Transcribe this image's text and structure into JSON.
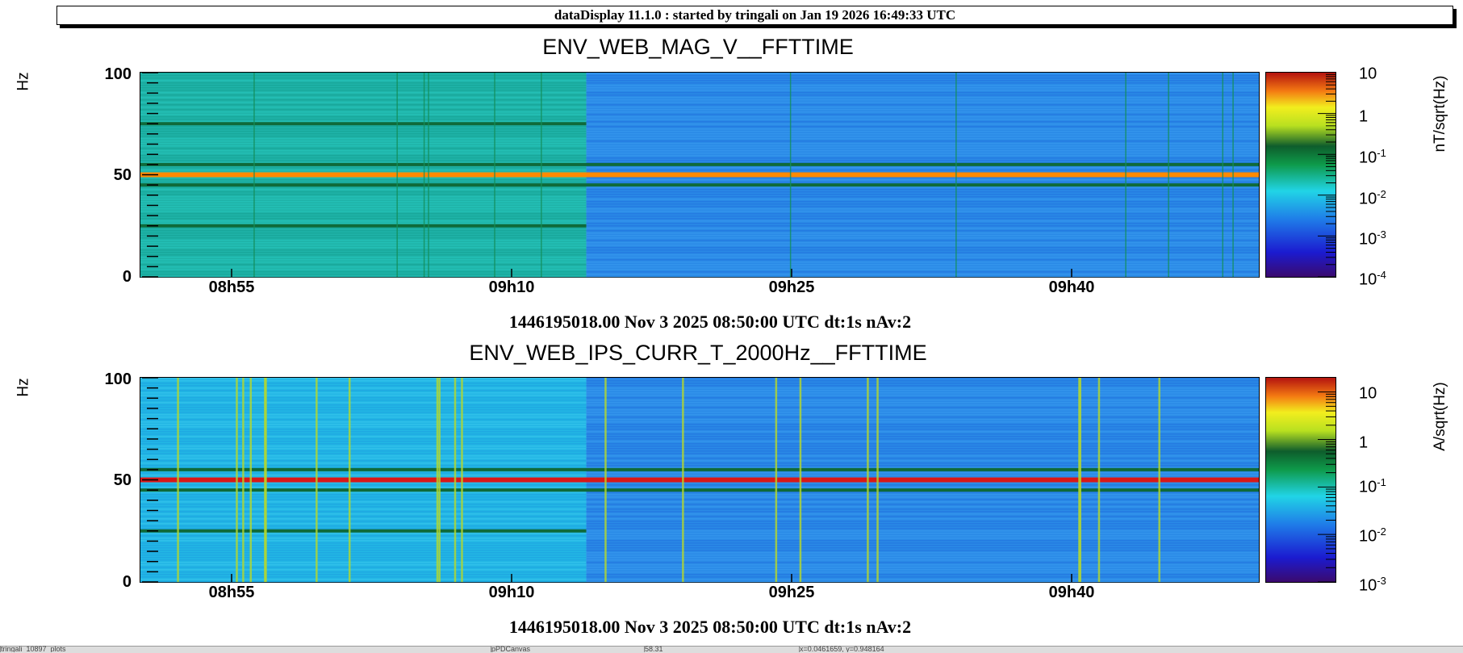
{
  "header": {
    "text": "dataDisplay 11.1.0 : started by tringali on Jan 19 2026 16:49:33 UTC"
  },
  "chart_data": [
    {
      "type": "heatmap",
      "title": "ENV_WEB_MAG_V__FFTTIME",
      "ylabel": "Hz",
      "zlabel": "nT/sqrt(Hz)",
      "ylim": [
        0,
        100
      ],
      "y_ticks": [
        "0",
        "50",
        "100"
      ],
      "x_ticks": [
        "08h55",
        "09h10",
        "09h25",
        "09h40"
      ],
      "z_ticks": [
        {
          "base": "10",
          "exp": "-4"
        },
        {
          "base": "10",
          "exp": "-3"
        },
        {
          "base": "10",
          "exp": "-2"
        },
        {
          "base": "10",
          "exp": "-1"
        },
        {
          "base": "1",
          "exp": ""
        },
        {
          "base": "10",
          "exp": ""
        }
      ],
      "zlim_log10": [
        -4,
        1
      ],
      "footer": "1446195018.00 Nov 3 2025 08:50:00 UTC dt:1s nAv:2",
      "lines": [
        {
          "freq": 50,
          "level": "high",
          "color": "#ff8a00"
        },
        {
          "freq": 75,
          "level": "mid",
          "color": "#0f6a3a"
        },
        {
          "freq": 55,
          "level": "mid",
          "color": "#0f6a3a"
        },
        {
          "freq": 45,
          "level": "mid",
          "color": "#0f6a3a"
        },
        {
          "freq": 25,
          "level": "mid",
          "color": "#0f6a3a"
        }
      ],
      "regime_change_time": "09h14"
    },
    {
      "type": "heatmap",
      "title": "ENV_WEB_IPS_CURR_T_2000Hz__FFTTIME",
      "ylabel": "Hz",
      "zlabel": "A/sqrt(Hz)",
      "ylim": [
        0,
        100
      ],
      "y_ticks": [
        "0",
        "50",
        "100"
      ],
      "x_ticks": [
        "08h55",
        "09h10",
        "09h25",
        "09h40"
      ],
      "z_ticks": [
        {
          "base": "10",
          "exp": "-3"
        },
        {
          "base": "10",
          "exp": "-2"
        },
        {
          "base": "10",
          "exp": "-1"
        },
        {
          "base": "1",
          "exp": ""
        },
        {
          "base": "10",
          "exp": ""
        }
      ],
      "zlim_log10": [
        -3,
        1.3
      ],
      "footer": "1446195018.00 Nov 3 2025 08:50:00 UTC dt:1s nAv:2",
      "lines": [
        {
          "freq": 50,
          "level": "high",
          "color": "#d81818"
        },
        {
          "freq": 55,
          "level": "mid",
          "color": "#0f6a3a"
        },
        {
          "freq": 45,
          "level": "mid",
          "color": "#0f6a3a"
        },
        {
          "freq": 25,
          "level": "mid",
          "color": "#0f6a3a"
        }
      ],
      "regime_change_time": "09h14"
    }
  ],
  "status_bar": {
    "fields": [
      "tringali_10897_plots",
      "pPDCanvas",
      "58.31",
      "x=0.0461659, y=0.948164"
    ]
  }
}
